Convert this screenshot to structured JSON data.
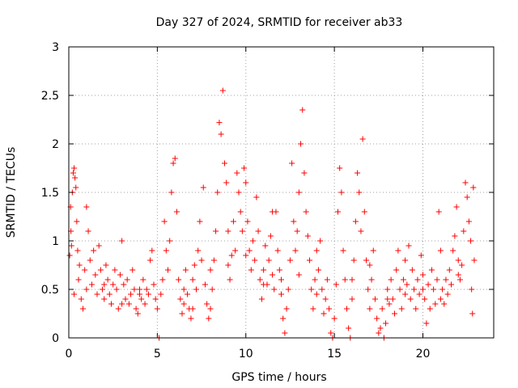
{
  "chart_data": {
    "type": "scatter",
    "title": "Day 327 of 2024, SRMTID for receiver ab33",
    "xlabel": "GPS time / hours",
    "ylabel": "SRMTID / TECUs",
    "xlim": [
      0,
      24
    ],
    "ylim": [
      0,
      3
    ],
    "x_ticks": [
      0,
      5,
      10,
      15,
      20
    ],
    "x_tick_labels": [
      "0",
      "5",
      "10",
      "15",
      "20"
    ],
    "y_ticks": [
      0,
      0.5,
      1,
      1.5,
      2,
      2.5,
      3
    ],
    "y_tick_labels": [
      "0",
      "0.5",
      "1",
      "1.5",
      "2",
      "2.5",
      "3"
    ],
    "grid": true,
    "marker": "+",
    "series_color": "#ff0000",
    "series": [
      {
        "name": "SRMTID",
        "points": [
          [
            0.05,
            0.85
          ],
          [
            0.1,
            1.35
          ],
          [
            0.12,
            1.1
          ],
          [
            0.15,
            0.95
          ],
          [
            0.2,
            1.5
          ],
          [
            0.25,
            1.7
          ],
          [
            0.3,
            1.75
          ],
          [
            0.35,
            1.65
          ],
          [
            0.4,
            1.55
          ],
          [
            0.45,
            1.2
          ],
          [
            0.5,
            0.9
          ],
          [
            0.55,
            0.6
          ],
          [
            0.6,
            0.75
          ],
          [
            0.7,
            0.4
          ],
          [
            0.8,
            0.3
          ],
          [
            0.9,
            0.7
          ],
          [
            1.0,
            1.35
          ],
          [
            1.1,
            1.1
          ],
          [
            1.2,
            0.8
          ],
          [
            1.3,
            0.55
          ],
          [
            1.4,
            0.9
          ],
          [
            1.5,
            0.65
          ],
          [
            1.6,
            0.45
          ],
          [
            1.7,
            0.95
          ],
          [
            1.8,
            0.7
          ],
          [
            1.9,
            0.5
          ],
          [
            2.0,
            0.4
          ],
          [
            2.1,
            0.75
          ],
          [
            2.2,
            0.6
          ],
          [
            2.3,
            0.45
          ],
          [
            2.4,
            0.35
          ],
          [
            2.5,
            0.55
          ],
          [
            2.6,
            0.7
          ],
          [
            2.7,
            0.5
          ],
          [
            2.8,
            0.3
          ],
          [
            2.9,
            0.65
          ],
          [
            3.0,
            1.0
          ],
          [
            3.1,
            0.55
          ],
          [
            3.2,
            0.4
          ],
          [
            3.3,
            0.6
          ],
          [
            3.4,
            0.35
          ],
          [
            3.5,
            0.45
          ],
          [
            3.6,
            0.7
          ],
          [
            3.7,
            0.5
          ],
          [
            3.8,
            0.3
          ],
          [
            3.9,
            0.25
          ],
          [
            4.0,
            0.5
          ],
          [
            4.1,
            0.4
          ],
          [
            4.2,
            0.6
          ],
          [
            4.3,
            0.35
          ],
          [
            4.4,
            0.5
          ],
          [
            4.5,
            0.45
          ],
          [
            4.6,
            0.8
          ],
          [
            4.7,
            0.9
          ],
          [
            4.8,
            0.55
          ],
          [
            4.9,
            0.4
          ],
          [
            5.0,
            0.3
          ],
          [
            5.1,
            0.0
          ],
          [
            5.2,
            0.45
          ],
          [
            5.3,
            0.6
          ],
          [
            5.4,
            1.2
          ],
          [
            5.5,
            0.9
          ],
          [
            5.6,
            0.7
          ],
          [
            5.7,
            1.0
          ],
          [
            5.8,
            1.5
          ],
          [
            5.9,
            1.8
          ],
          [
            6.0,
            1.85
          ],
          [
            6.1,
            1.3
          ],
          [
            6.2,
            0.6
          ],
          [
            6.3,
            0.4
          ],
          [
            6.4,
            0.25
          ],
          [
            6.5,
            0.35
          ],
          [
            6.6,
            0.7
          ],
          [
            6.7,
            0.45
          ],
          [
            6.8,
            0.3
          ],
          [
            6.9,
            0.2
          ],
          [
            7.0,
            0.6
          ],
          [
            7.1,
            0.75
          ],
          [
            7.2,
            0.5
          ],
          [
            7.3,
            0.9
          ],
          [
            7.4,
            1.2
          ],
          [
            7.5,
            0.8
          ],
          [
            7.6,
            1.55
          ],
          [
            7.7,
            0.55
          ],
          [
            7.8,
            0.35
          ],
          [
            7.9,
            0.2
          ],
          [
            8.0,
            0.3
          ],
          [
            8.1,
            0.5
          ],
          [
            8.2,
            0.8
          ],
          [
            8.3,
            1.1
          ],
          [
            8.4,
            1.5
          ],
          [
            8.5,
            2.22
          ],
          [
            8.6,
            2.1
          ],
          [
            8.7,
            2.55
          ],
          [
            8.8,
            1.8
          ],
          [
            8.9,
            1.6
          ],
          [
            9.0,
            1.1
          ],
          [
            9.1,
            0.6
          ],
          [
            9.2,
            0.85
          ],
          [
            9.3,
            1.2
          ],
          [
            9.4,
            0.9
          ],
          [
            9.5,
            1.7
          ],
          [
            9.6,
            1.5
          ],
          [
            9.7,
            1.3
          ],
          [
            9.8,
            1.1
          ],
          [
            9.9,
            1.75
          ],
          [
            10.0,
            1.6
          ],
          [
            10.1,
            1.2
          ],
          [
            10.2,
            0.9
          ],
          [
            10.3,
            0.7
          ],
          [
            10.4,
            1.0
          ],
          [
            10.5,
            0.8
          ],
          [
            10.6,
            1.45
          ],
          [
            10.7,
            1.1
          ],
          [
            10.8,
            0.6
          ],
          [
            10.9,
            0.4
          ],
          [
            11.0,
            0.7
          ],
          [
            11.1,
            0.95
          ],
          [
            11.2,
            0.55
          ],
          [
            11.3,
            0.8
          ],
          [
            11.4,
            1.05
          ],
          [
            11.5,
            0.65
          ],
          [
            11.6,
            0.5
          ],
          [
            11.7,
            1.3
          ],
          [
            11.8,
            0.9
          ],
          [
            11.9,
            0.7
          ],
          [
            12.0,
            0.45
          ],
          [
            12.1,
            0.2
          ],
          [
            12.2,
            0.05
          ],
          [
            12.3,
            0.3
          ],
          [
            12.4,
            0.5
          ],
          [
            12.5,
            0.8
          ],
          [
            12.6,
            1.8
          ],
          [
            12.7,
            1.2
          ],
          [
            12.8,
            0.9
          ],
          [
            12.9,
            1.1
          ],
          [
            13.0,
            1.5
          ],
          [
            13.1,
            2.0
          ],
          [
            13.2,
            2.35
          ],
          [
            13.3,
            1.7
          ],
          [
            13.4,
            1.3
          ],
          [
            13.5,
            1.05
          ],
          [
            13.6,
            0.8
          ],
          [
            13.7,
            0.5
          ],
          [
            13.8,
            0.3
          ],
          [
            13.9,
            0.6
          ],
          [
            14.0,
            0.9
          ],
          [
            14.1,
            0.7
          ],
          [
            14.2,
            1.0
          ],
          [
            14.3,
            0.5
          ],
          [
            14.4,
            0.25
          ],
          [
            14.5,
            0.4
          ],
          [
            14.6,
            0.6
          ],
          [
            14.7,
            0.3
          ],
          [
            14.8,
            0.05
          ],
          [
            14.9,
            0.0
          ],
          [
            15.0,
            0.2
          ],
          [
            15.1,
            0.55
          ],
          [
            15.2,
            1.3
          ],
          [
            15.3,
            1.75
          ],
          [
            15.4,
            1.5
          ],
          [
            15.5,
            0.9
          ],
          [
            15.6,
            0.6
          ],
          [
            15.7,
            0.3
          ],
          [
            15.8,
            0.1
          ],
          [
            15.9,
            0.0
          ],
          [
            16.0,
            0.4
          ],
          [
            16.1,
            0.8
          ],
          [
            16.2,
            1.2
          ],
          [
            16.3,
            1.7
          ],
          [
            16.4,
            1.5
          ],
          [
            16.5,
            1.1
          ],
          [
            16.6,
            2.05
          ],
          [
            16.7,
            1.3
          ],
          [
            16.8,
            0.8
          ],
          [
            16.9,
            0.5
          ],
          [
            17.0,
            0.3
          ],
          [
            17.1,
            0.6
          ],
          [
            17.2,
            0.9
          ],
          [
            17.3,
            0.4
          ],
          [
            17.4,
            0.2
          ],
          [
            17.5,
            0.05
          ],
          [
            17.6,
            0.1
          ],
          [
            17.7,
            0.3
          ],
          [
            17.8,
            0.0
          ],
          [
            17.9,
            0.15
          ],
          [
            18.0,
            0.5
          ],
          [
            18.1,
            0.35
          ],
          [
            18.2,
            0.6
          ],
          [
            18.3,
            0.4
          ],
          [
            18.4,
            0.25
          ],
          [
            18.5,
            0.7
          ],
          [
            18.6,
            0.9
          ],
          [
            18.7,
            0.5
          ],
          [
            18.8,
            0.3
          ],
          [
            18.9,
            0.6
          ],
          [
            19.0,
            0.8
          ],
          [
            19.1,
            0.55
          ],
          [
            19.2,
            0.95
          ],
          [
            19.3,
            0.4
          ],
          [
            19.4,
            0.7
          ],
          [
            19.5,
            0.5
          ],
          [
            19.6,
            0.3
          ],
          [
            19.7,
            0.6
          ],
          [
            19.8,
            0.45
          ],
          [
            19.9,
            0.85
          ],
          [
            20.0,
            0.65
          ],
          [
            20.1,
            0.4
          ],
          [
            20.2,
            0.15
          ],
          [
            20.3,
            0.55
          ],
          [
            20.4,
            0.3
          ],
          [
            20.5,
            0.7
          ],
          [
            20.6,
            0.5
          ],
          [
            20.7,
            0.35
          ],
          [
            20.8,
            0.6
          ],
          [
            20.9,
            1.3
          ],
          [
            21.0,
            0.9
          ],
          [
            21.1,
            0.5
          ],
          [
            21.2,
            0.35
          ],
          [
            21.3,
            0.6
          ],
          [
            21.4,
            0.45
          ],
          [
            21.5,
            0.7
          ],
          [
            21.6,
            0.55
          ],
          [
            21.7,
            0.9
          ],
          [
            21.8,
            1.05
          ],
          [
            21.9,
            1.35
          ],
          [
            22.0,
            0.8
          ],
          [
            22.1,
            0.6
          ],
          [
            22.2,
            0.75
          ],
          [
            22.3,
            1.1
          ],
          [
            22.4,
            1.6
          ],
          [
            22.5,
            1.45
          ],
          [
            22.6,
            1.2
          ],
          [
            22.7,
            1.0
          ],
          [
            22.75,
            0.5
          ],
          [
            22.8,
            0.25
          ],
          [
            22.85,
            1.55
          ],
          [
            22.9,
            0.8
          ],
          [
            0.3,
            0.45
          ],
          [
            1.0,
            0.5
          ],
          [
            2.0,
            0.55
          ],
          [
            3.0,
            0.35
          ],
          [
            4.0,
            0.45
          ],
          [
            6.5,
            0.5
          ],
          [
            7.0,
            0.3
          ],
          [
            8.0,
            0.7
          ],
          [
            9.0,
            0.75
          ],
          [
            10.0,
            0.85
          ],
          [
            11.0,
            0.55
          ],
          [
            12.0,
            0.6
          ],
          [
            13.0,
            0.65
          ],
          [
            14.0,
            0.45
          ],
          [
            16.0,
            0.6
          ],
          [
            17.0,
            0.75
          ],
          [
            18.0,
            0.4
          ],
          [
            19.0,
            0.45
          ],
          [
            20.0,
            0.5
          ],
          [
            21.0,
            0.4
          ],
          [
            22.0,
            0.65
          ],
          [
            11.5,
            1.3
          ]
        ]
      }
    ]
  }
}
